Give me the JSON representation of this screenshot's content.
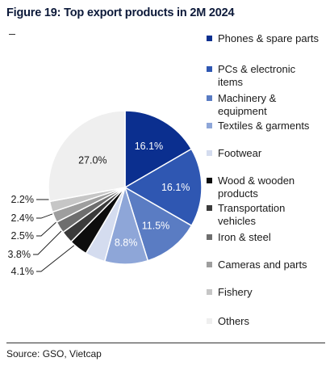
{
  "title": "Figure 19: Top export products in 2M 2024",
  "source": "Source: GSO, Vietcap",
  "chart_data": {
    "type": "pie",
    "title": "Figure 19: Top export products in 2M 2024",
    "legend_position": "right",
    "slices": [
      {
        "label": "Phones & spare parts",
        "value": 16.1,
        "display": "16.1%",
        "color": "#0b2f8f"
      },
      {
        "label": "PCs & electronic items",
        "value": 16.1,
        "display": "16.1%",
        "color": "#2f57b2"
      },
      {
        "label": "Machinery & equipment",
        "value": 11.5,
        "display": "11.5%",
        "color": "#5a7cc3"
      },
      {
        "label": "Textiles & garments",
        "value": 8.8,
        "display": "8.8%",
        "color": "#8ea6d8"
      },
      {
        "label": "Footwear",
        "value": 4.1,
        "display": "4.1%",
        "color": "#d4dcef"
      },
      {
        "label": "Wood & wooden products",
        "value": 3.8,
        "display": "3.8%",
        "color": "#0d0d0d"
      },
      {
        "label": "Transportation vehicles",
        "value": 2.5,
        "display": "2.5%",
        "color": "#3b3b3b"
      },
      {
        "label": "Iron & steel",
        "value": 2.4,
        "display": "2.4%",
        "color": "#6e6e6e"
      },
      {
        "label": "Cameras and parts",
        "value": 2.2,
        "display": "2.2%",
        "color": "#9e9e9e"
      },
      {
        "label": "Fishery",
        "value": 2.2,
        "display": "",
        "color": "#c6c6c6"
      },
      {
        "label": "Others",
        "value": 27.0,
        "display": "27.0%",
        "color": "#efefef"
      }
    ]
  },
  "legend": [
    {
      "lines": [
        "Phones & spare parts"
      ],
      "color": "#0b2f8f"
    },
    {
      "lines": [
        "PCs & electronic",
        "items"
      ],
      "color": "#2f57b2"
    },
    {
      "lines": [
        "Machinery &",
        "equipment"
      ],
      "color": "#5a7cc3"
    },
    {
      "lines": [
        "Textiles & garments"
      ],
      "color": "#8ea6d8"
    },
    {
      "lines": [
        "Footwear"
      ],
      "color": "#d4dcef"
    },
    {
      "lines": [
        "Wood & wooden",
        "products"
      ],
      "color": "#0d0d0d"
    },
    {
      "lines": [
        "Transportation",
        "vehicles"
      ],
      "color": "#3b3b3b"
    },
    {
      "lines": [
        "Iron & steel"
      ],
      "color": "#6e6e6e"
    },
    {
      "lines": [
        "Cameras and parts"
      ],
      "color": "#9e9e9e"
    },
    {
      "lines": [
        "Fishery"
      ],
      "color": "#c6c6c6"
    },
    {
      "lines": [
        "Others"
      ],
      "color": "#efefef"
    }
  ]
}
